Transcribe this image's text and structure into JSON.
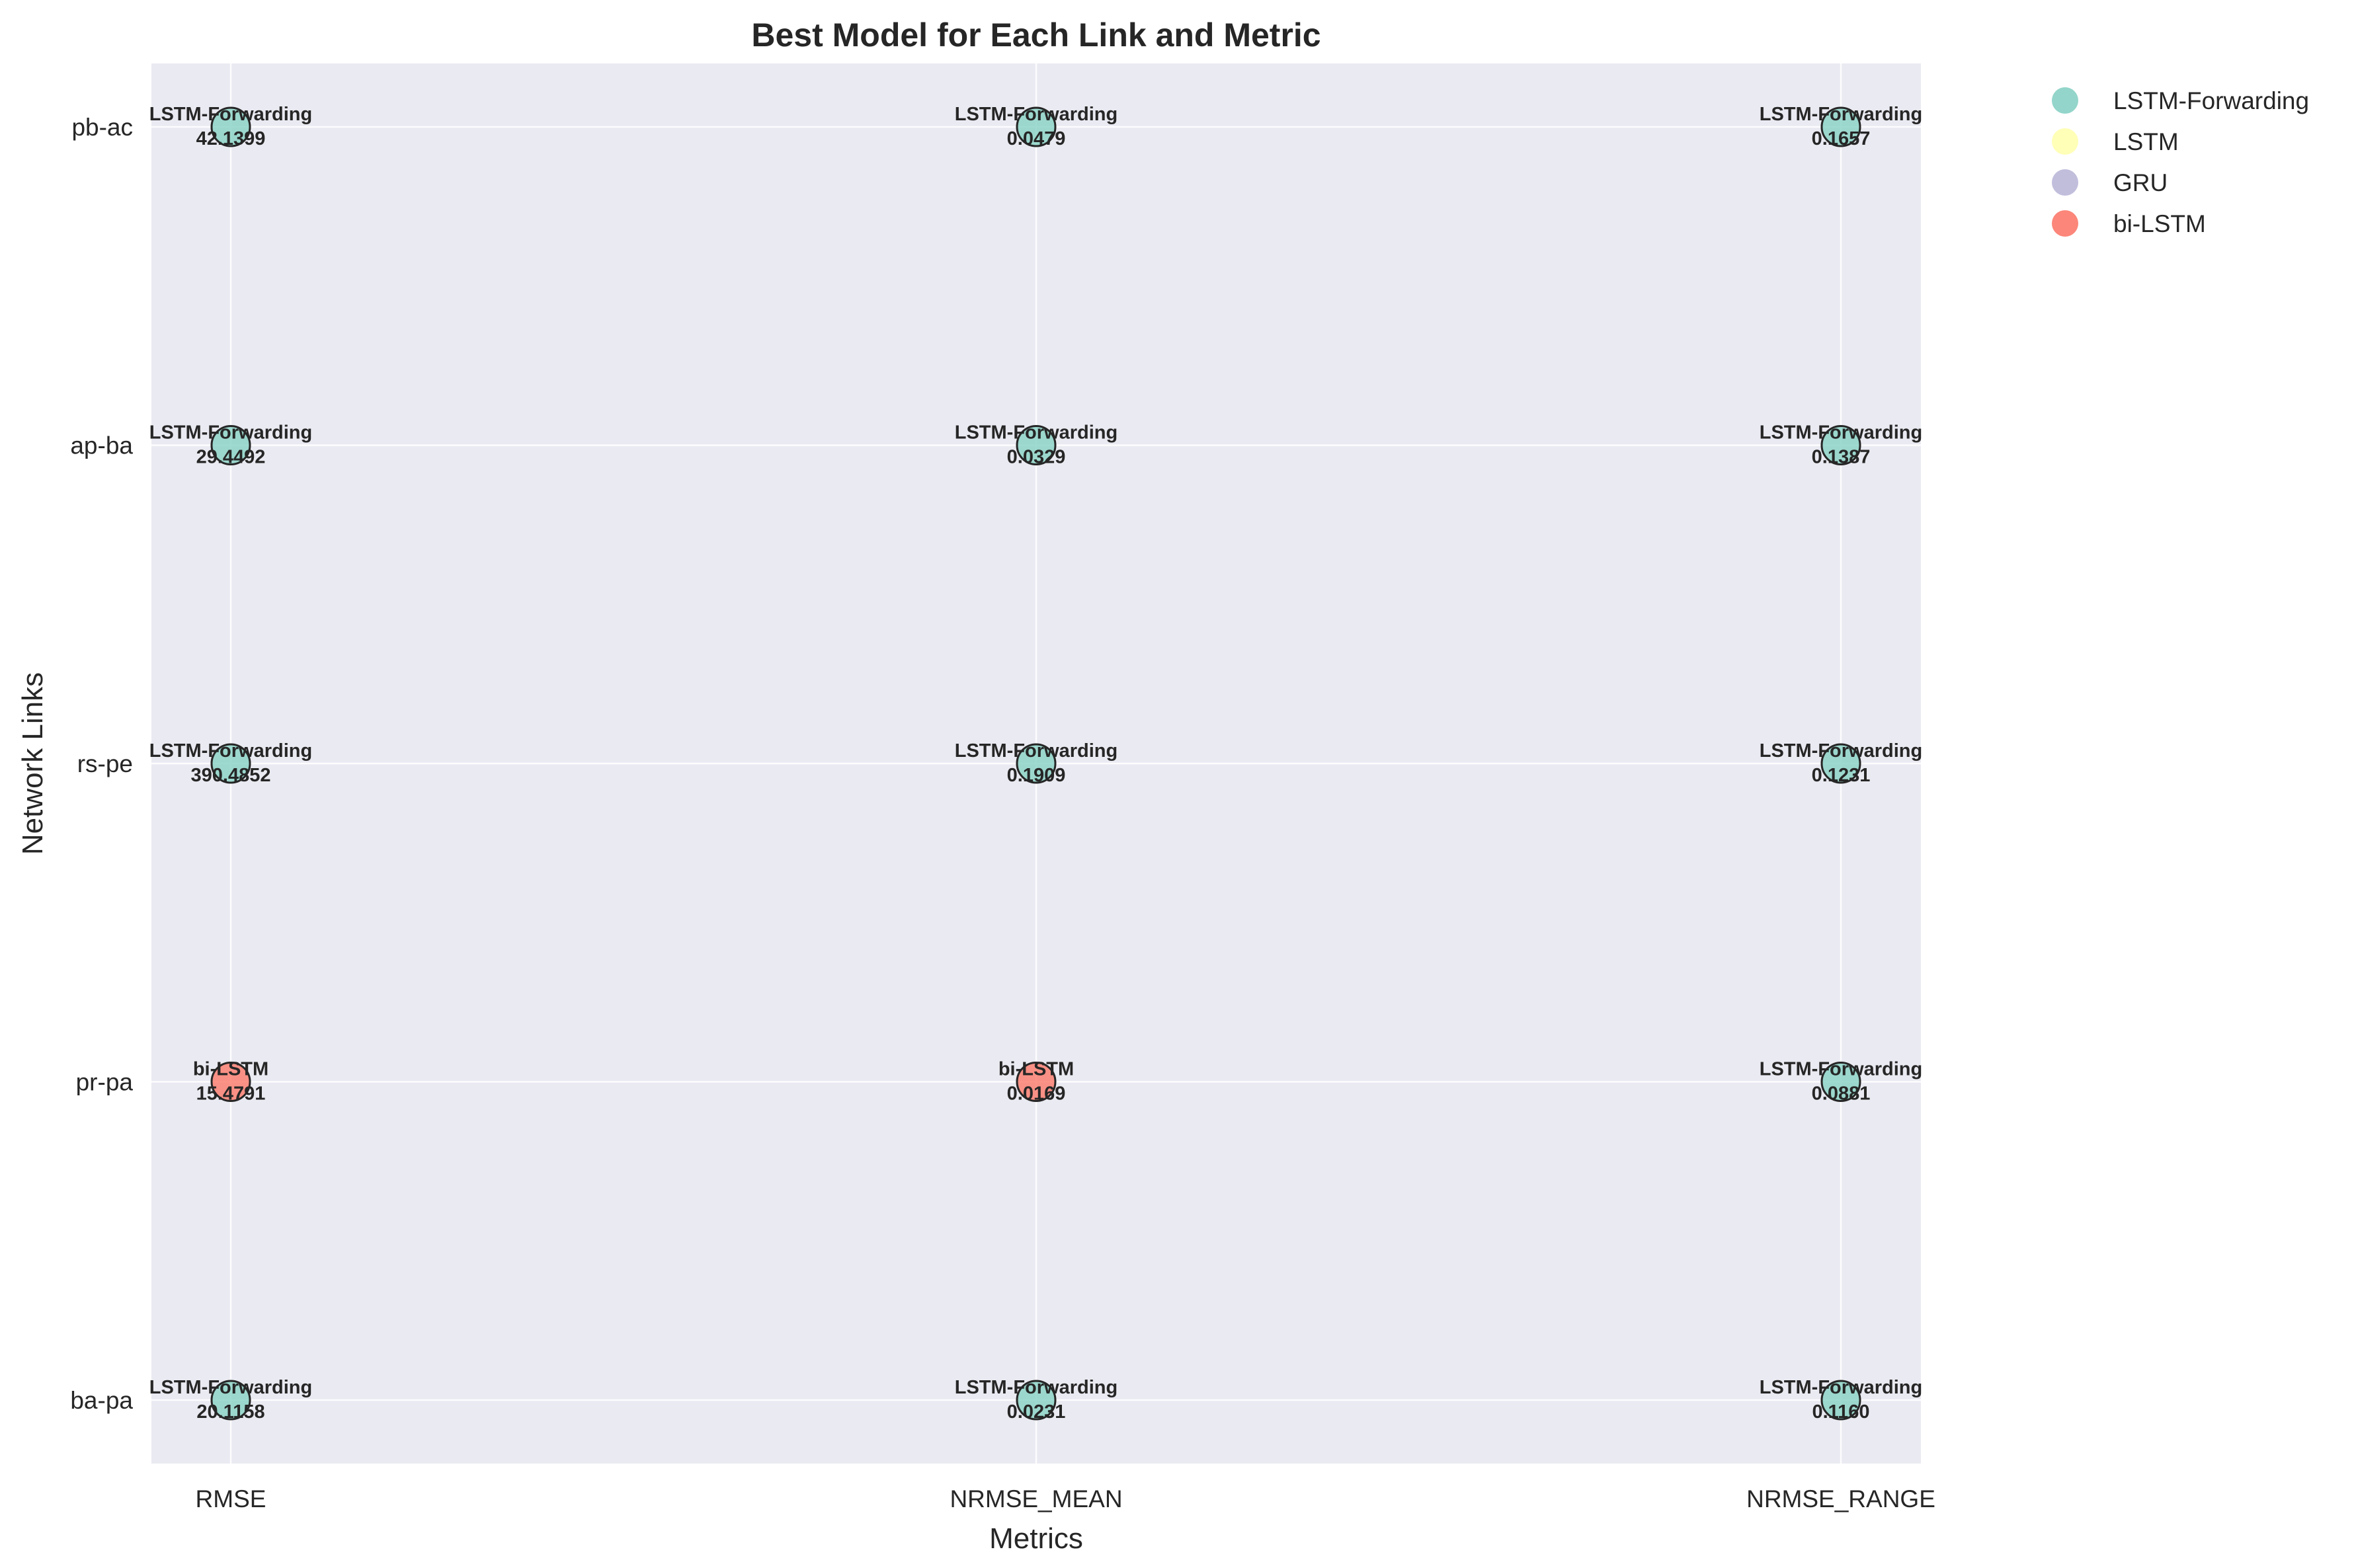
{
  "chart_data": {
    "type": "scatter",
    "title": "Best Model for Each Link and Metric",
    "xlabel": "Metrics",
    "ylabel": "Network Links",
    "x_categories": [
      "RMSE",
      "NRMSE_MEAN",
      "NRMSE_RANGE"
    ],
    "y_categories": [
      "ba-pa",
      "pr-pa",
      "rs-pe",
      "ap-ba",
      "pb-ac"
    ],
    "grid": true,
    "legend_position": "outside-top-right",
    "legend": [
      {
        "name": "LSTM-Forwarding",
        "color": "#8dd3c7"
      },
      {
        "name": "LSTM",
        "color": "#ffffb3"
      },
      {
        "name": "GRU",
        "color": "#bebada"
      },
      {
        "name": "bi-LSTM",
        "color": "#fb8072"
      }
    ],
    "points": [
      {
        "link": "pb-ac",
        "metric": "RMSE",
        "model": "LSTM-Forwarding",
        "value": "42.1399"
      },
      {
        "link": "pb-ac",
        "metric": "NRMSE_MEAN",
        "model": "LSTM-Forwarding",
        "value": "0.0479"
      },
      {
        "link": "pb-ac",
        "metric": "NRMSE_RANGE",
        "model": "LSTM-Forwarding",
        "value": "0.1657"
      },
      {
        "link": "ap-ba",
        "metric": "RMSE",
        "model": "LSTM-Forwarding",
        "value": "29.4492"
      },
      {
        "link": "ap-ba",
        "metric": "NRMSE_MEAN",
        "model": "LSTM-Forwarding",
        "value": "0.0329"
      },
      {
        "link": "ap-ba",
        "metric": "NRMSE_RANGE",
        "model": "LSTM-Forwarding",
        "value": "0.1387"
      },
      {
        "link": "rs-pe",
        "metric": "RMSE",
        "model": "LSTM-Forwarding",
        "value": "390.4852"
      },
      {
        "link": "rs-pe",
        "metric": "NRMSE_MEAN",
        "model": "LSTM-Forwarding",
        "value": "0.1909"
      },
      {
        "link": "rs-pe",
        "metric": "NRMSE_RANGE",
        "model": "LSTM-Forwarding",
        "value": "0.1231"
      },
      {
        "link": "pr-pa",
        "metric": "RMSE",
        "model": "bi-LSTM",
        "value": "15.4791"
      },
      {
        "link": "pr-pa",
        "metric": "NRMSE_MEAN",
        "model": "bi-LSTM",
        "value": "0.0169"
      },
      {
        "link": "pr-pa",
        "metric": "NRMSE_RANGE",
        "model": "LSTM-Forwarding",
        "value": "0.0881"
      },
      {
        "link": "ba-pa",
        "metric": "RMSE",
        "model": "LSTM-Forwarding",
        "value": "20.1158"
      },
      {
        "link": "ba-pa",
        "metric": "NRMSE_MEAN",
        "model": "LSTM-Forwarding",
        "value": "0.0231"
      },
      {
        "link": "ba-pa",
        "metric": "NRMSE_RANGE",
        "model": "LSTM-Forwarding",
        "value": "0.1160"
      }
    ]
  }
}
